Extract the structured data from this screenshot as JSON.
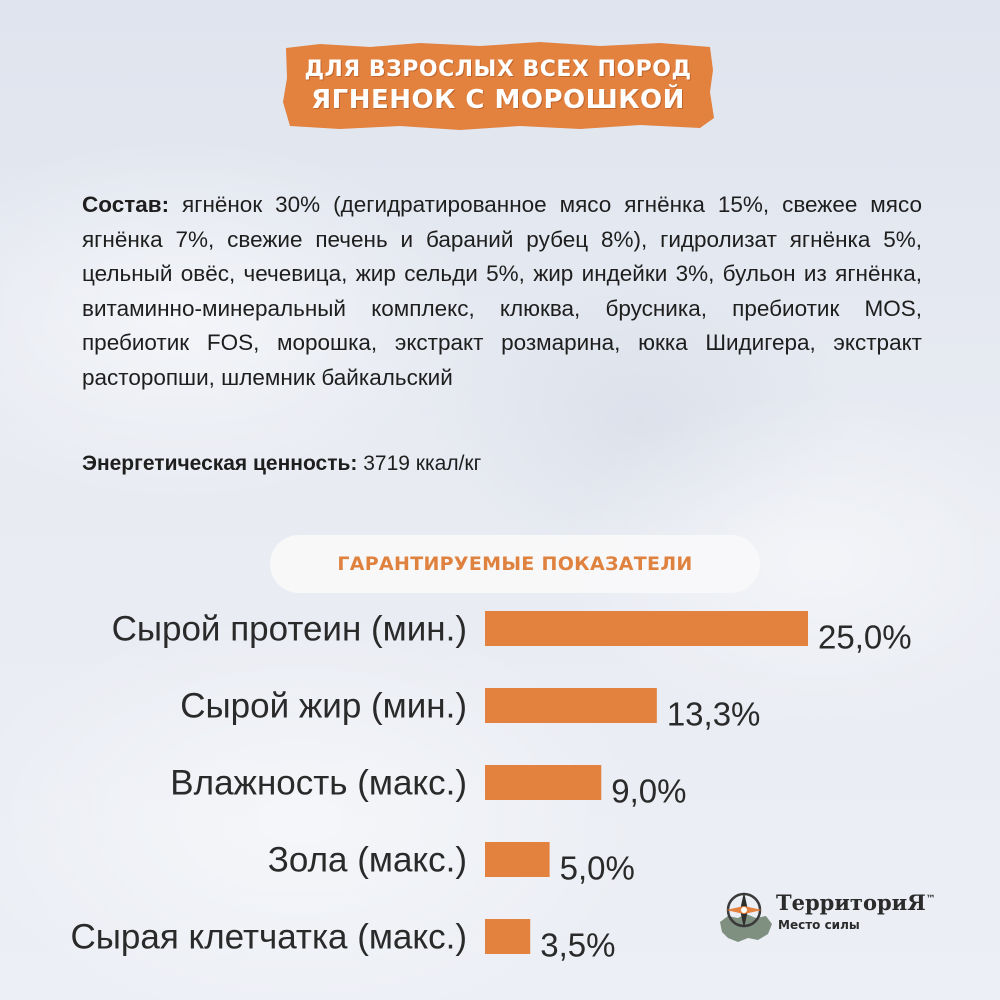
{
  "banner": {
    "line1": "для взрослых всех пород",
    "line2": "Ягненок с морошкой",
    "color": "#e3813f"
  },
  "composition": {
    "label": "Состав:",
    "text": "ягнёнок 30% (дегидратированное мясо ягнёнка 15%, свежее мясо ягнёнка 7%, свежие печень и бараний рубец 8%), гидролизат ягнёнка 5%, цельный овёс, чечевица, жир сельди 5%, жир индейки 3%, бульон из ягнёнка, витаминно-минеральный комплекс, клюква, брусника, пребиотик MOS, пребиотик FOS, морошка, экстракт розмарина, юкка Шидигера, экстракт расторопши, шлемник байкальский"
  },
  "energy": {
    "label": "Энергетическая ценность:",
    "value": "3719 ккал/кг"
  },
  "chart_data": {
    "type": "bar",
    "orientation": "horizontal",
    "title": "Гарантируемые показатели",
    "categories": [
      "Сырой протеин (мин.)",
      "Сырой жир (мин.)",
      "Влажность (макс.)",
      "Зола (макс.)",
      "Сырая клетчатка (макс.)"
    ],
    "values": [
      25.0,
      13.3,
      9.0,
      5.0,
      3.5
    ],
    "value_labels": [
      "25,0%",
      "13,3%",
      "9,0%",
      "5,0%",
      "3,5%"
    ],
    "unit": "%",
    "bar_color": "#e3813f",
    "grid": false,
    "legend": "none"
  },
  "logo": {
    "title": "ТерриториЯ",
    "tm": "™",
    "subtitle": "Место силы",
    "icon": "compass-map-icon"
  }
}
